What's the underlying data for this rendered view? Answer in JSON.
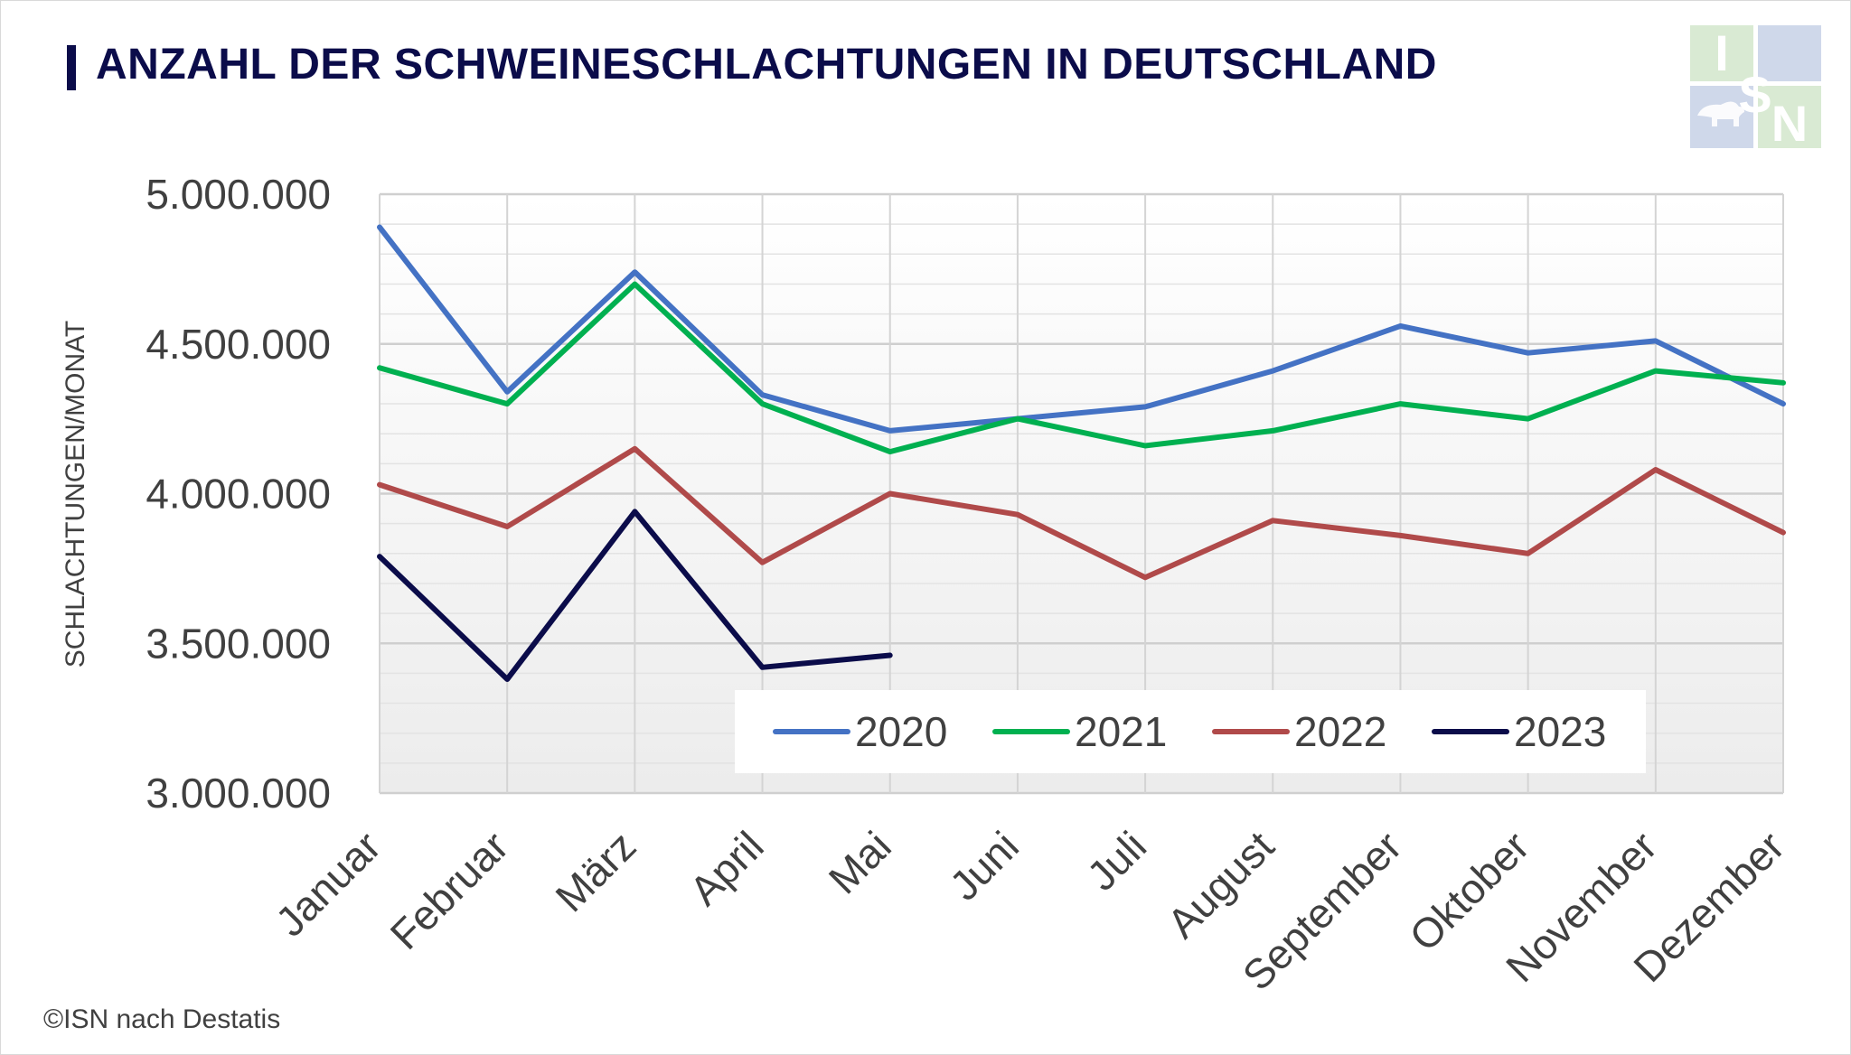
{
  "header": {
    "title": "ANZAHL DER SCHWEINESCHLACHTUNGEN IN DEUTSCHLAND"
  },
  "logo": {
    "letters": [
      "I",
      "S",
      "N"
    ],
    "colors": {
      "light_green": "#d9ead3",
      "light_blue": "#cfd8ea"
    }
  },
  "source": "©ISN nach Destatis",
  "chart_data": {
    "type": "line",
    "title": "ANZAHL DER SCHWEINESCHLACHTUNGEN IN DEUTSCHLAND",
    "ylabel": "SCHLACHTUNGEN/MONAT",
    "xlabel": "",
    "ylim": [
      3000000,
      5000000
    ],
    "yticks": [
      3000000,
      3500000,
      4000000,
      4500000,
      5000000
    ],
    "ytick_labels": [
      "3.000.000",
      "3.500.000",
      "4.000.000",
      "4.500.000",
      "5.000.000"
    ],
    "categories": [
      "Januar",
      "Februar",
      "März",
      "April",
      "Mai",
      "Juni",
      "Juli",
      "August",
      "September",
      "Oktober",
      "November",
      "Dezember"
    ],
    "grid": true,
    "legend_position": "bottom-right",
    "series": [
      {
        "name": "2020",
        "color": "#4472c4",
        "values": [
          4890000,
          4340000,
          4740000,
          4330000,
          4210000,
          4250000,
          4290000,
          4410000,
          4560000,
          4470000,
          4510000,
          4300000
        ]
      },
      {
        "name": "2021",
        "color": "#00b050",
        "values": [
          4420000,
          4300000,
          4700000,
          4300000,
          4140000,
          4250000,
          4160000,
          4210000,
          4300000,
          4250000,
          4410000,
          4370000
        ]
      },
      {
        "name": "2022",
        "color": "#b04a4a",
        "values": [
          4030000,
          3890000,
          4150000,
          3770000,
          4000000,
          3930000,
          3720000,
          3910000,
          3860000,
          3800000,
          4080000,
          3870000
        ]
      },
      {
        "name": "2023",
        "color": "#0b0c4a",
        "values": [
          3790000,
          3380000,
          3940000,
          3420000,
          3460000,
          null,
          null,
          null,
          null,
          null,
          null,
          null
        ]
      }
    ]
  }
}
